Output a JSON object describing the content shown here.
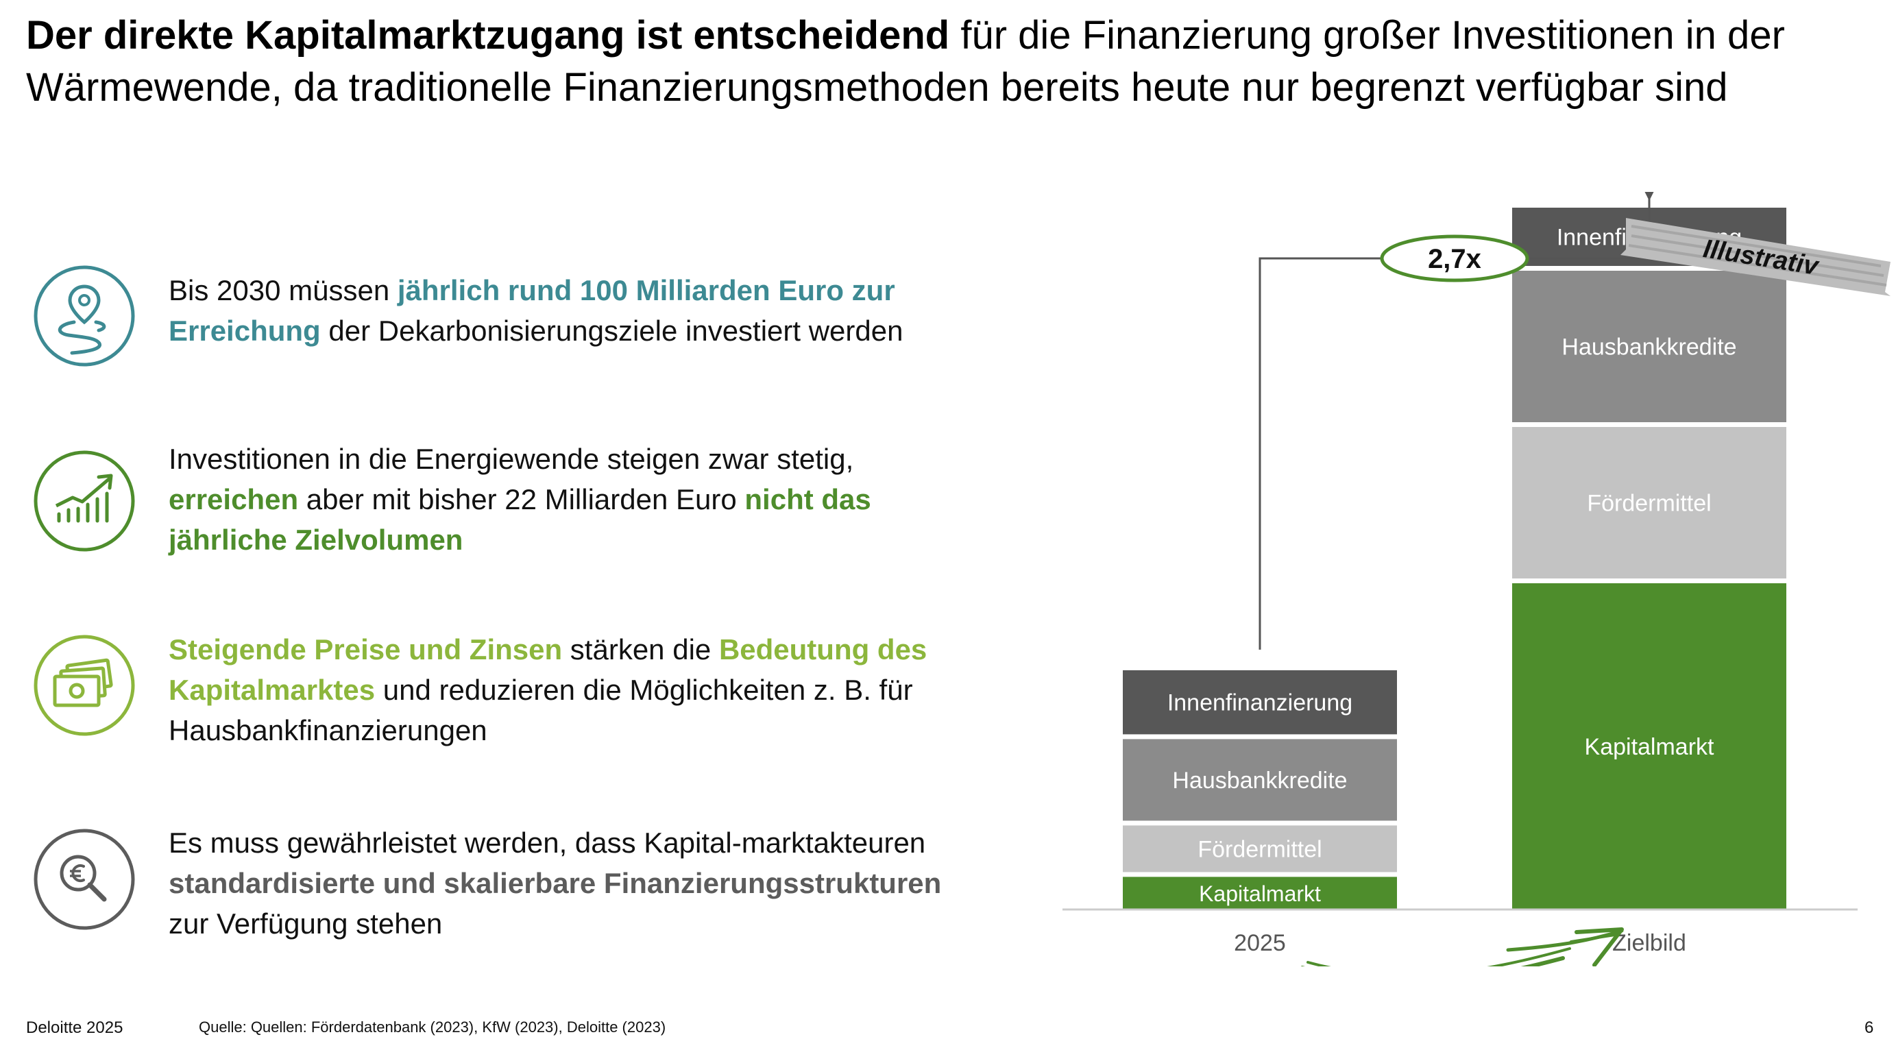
{
  "header": {
    "title_bold": "Der direkte Kapitalmarktzugang ist entscheidend",
    "title_rest": " für die Finanzierung großer Investitionen in der Wärmewende, da traditionelle Finanzierungsmethoden bereits heute nur begrenzt verfügbar sind"
  },
  "bullets": [
    {
      "icon": "map-pin-route-icon",
      "color": "#3d8a93",
      "parts": [
        {
          "t": "Bis 2030 müssen ",
          "s": ""
        },
        {
          "t": "jährlich rund 100 Milliarden Euro zur Erreichung",
          "s": "hl-teal"
        },
        {
          "t": " der Dekarbonisierungsziele investiert werden",
          "s": ""
        }
      ]
    },
    {
      "icon": "growth-chart-icon",
      "color": "#4e8d2c",
      "parts": [
        {
          "t": "Investitionen in die Energiewende steigen zwar stetig, ",
          "s": ""
        },
        {
          "t": "erreichen",
          "s": "hl-green"
        },
        {
          "t": " aber mit bisher 22 Milliarden Euro ",
          "s": ""
        },
        {
          "t": "nicht das jährliche Zielvolumen",
          "s": "hl-green"
        }
      ]
    },
    {
      "icon": "money-bills-icon",
      "color": "#8cb63c",
      "parts": [
        {
          "t": "Steigende Preise und Zinsen",
          "s": "hl-lime"
        },
        {
          "t": " stärken die ",
          "s": ""
        },
        {
          "t": "Bedeutung des Kapitalmarktes",
          "s": "hl-lime"
        },
        {
          "t": " und reduzieren die Möglichkeiten z. B. für Hausbankfinanzierungen",
          "s": ""
        }
      ]
    },
    {
      "icon": "euro-search-icon",
      "color": "#5c5c5c",
      "parts": [
        {
          "t": "Es muss gewährleistet werden, dass Kapital-marktakteuren ",
          "s": ""
        },
        {
          "t": "standardisierte und skalierbare Finanzierungsstrukturen",
          "s": "hl-gray"
        },
        {
          "t": " zur Verfügung stehen",
          "s": ""
        }
      ]
    }
  ],
  "chart_data": {
    "type": "bar",
    "stacked": true,
    "categories": [
      "2025",
      "Zielbild"
    ],
    "series": [
      {
        "name": "Kapitalmarkt",
        "values": [
          28,
          280
        ],
        "color": "#4e8d2c"
      },
      {
        "name": "Fördermittel",
        "values": [
          40,
          130
        ],
        "color": "#c3c3c3"
      },
      {
        "name": "Hausbankkredite",
        "values": [
          70,
          130
        ],
        "color": "#8b8b8b"
      },
      {
        "name": "Innenfinanzierung",
        "values": [
          55,
          50
        ],
        "color": "#575757"
      }
    ],
    "multiplier_label": "2,7x",
    "badge_label": "Illustrativ",
    "grid": false,
    "ylim": [
      0,
      600
    ]
  },
  "footer": {
    "left": "Deloitte 2025",
    "source": "Quelle: Quellen: Förderdatenbank (2023), KfW (2023), Deloitte (2023)",
    "page": "6"
  }
}
